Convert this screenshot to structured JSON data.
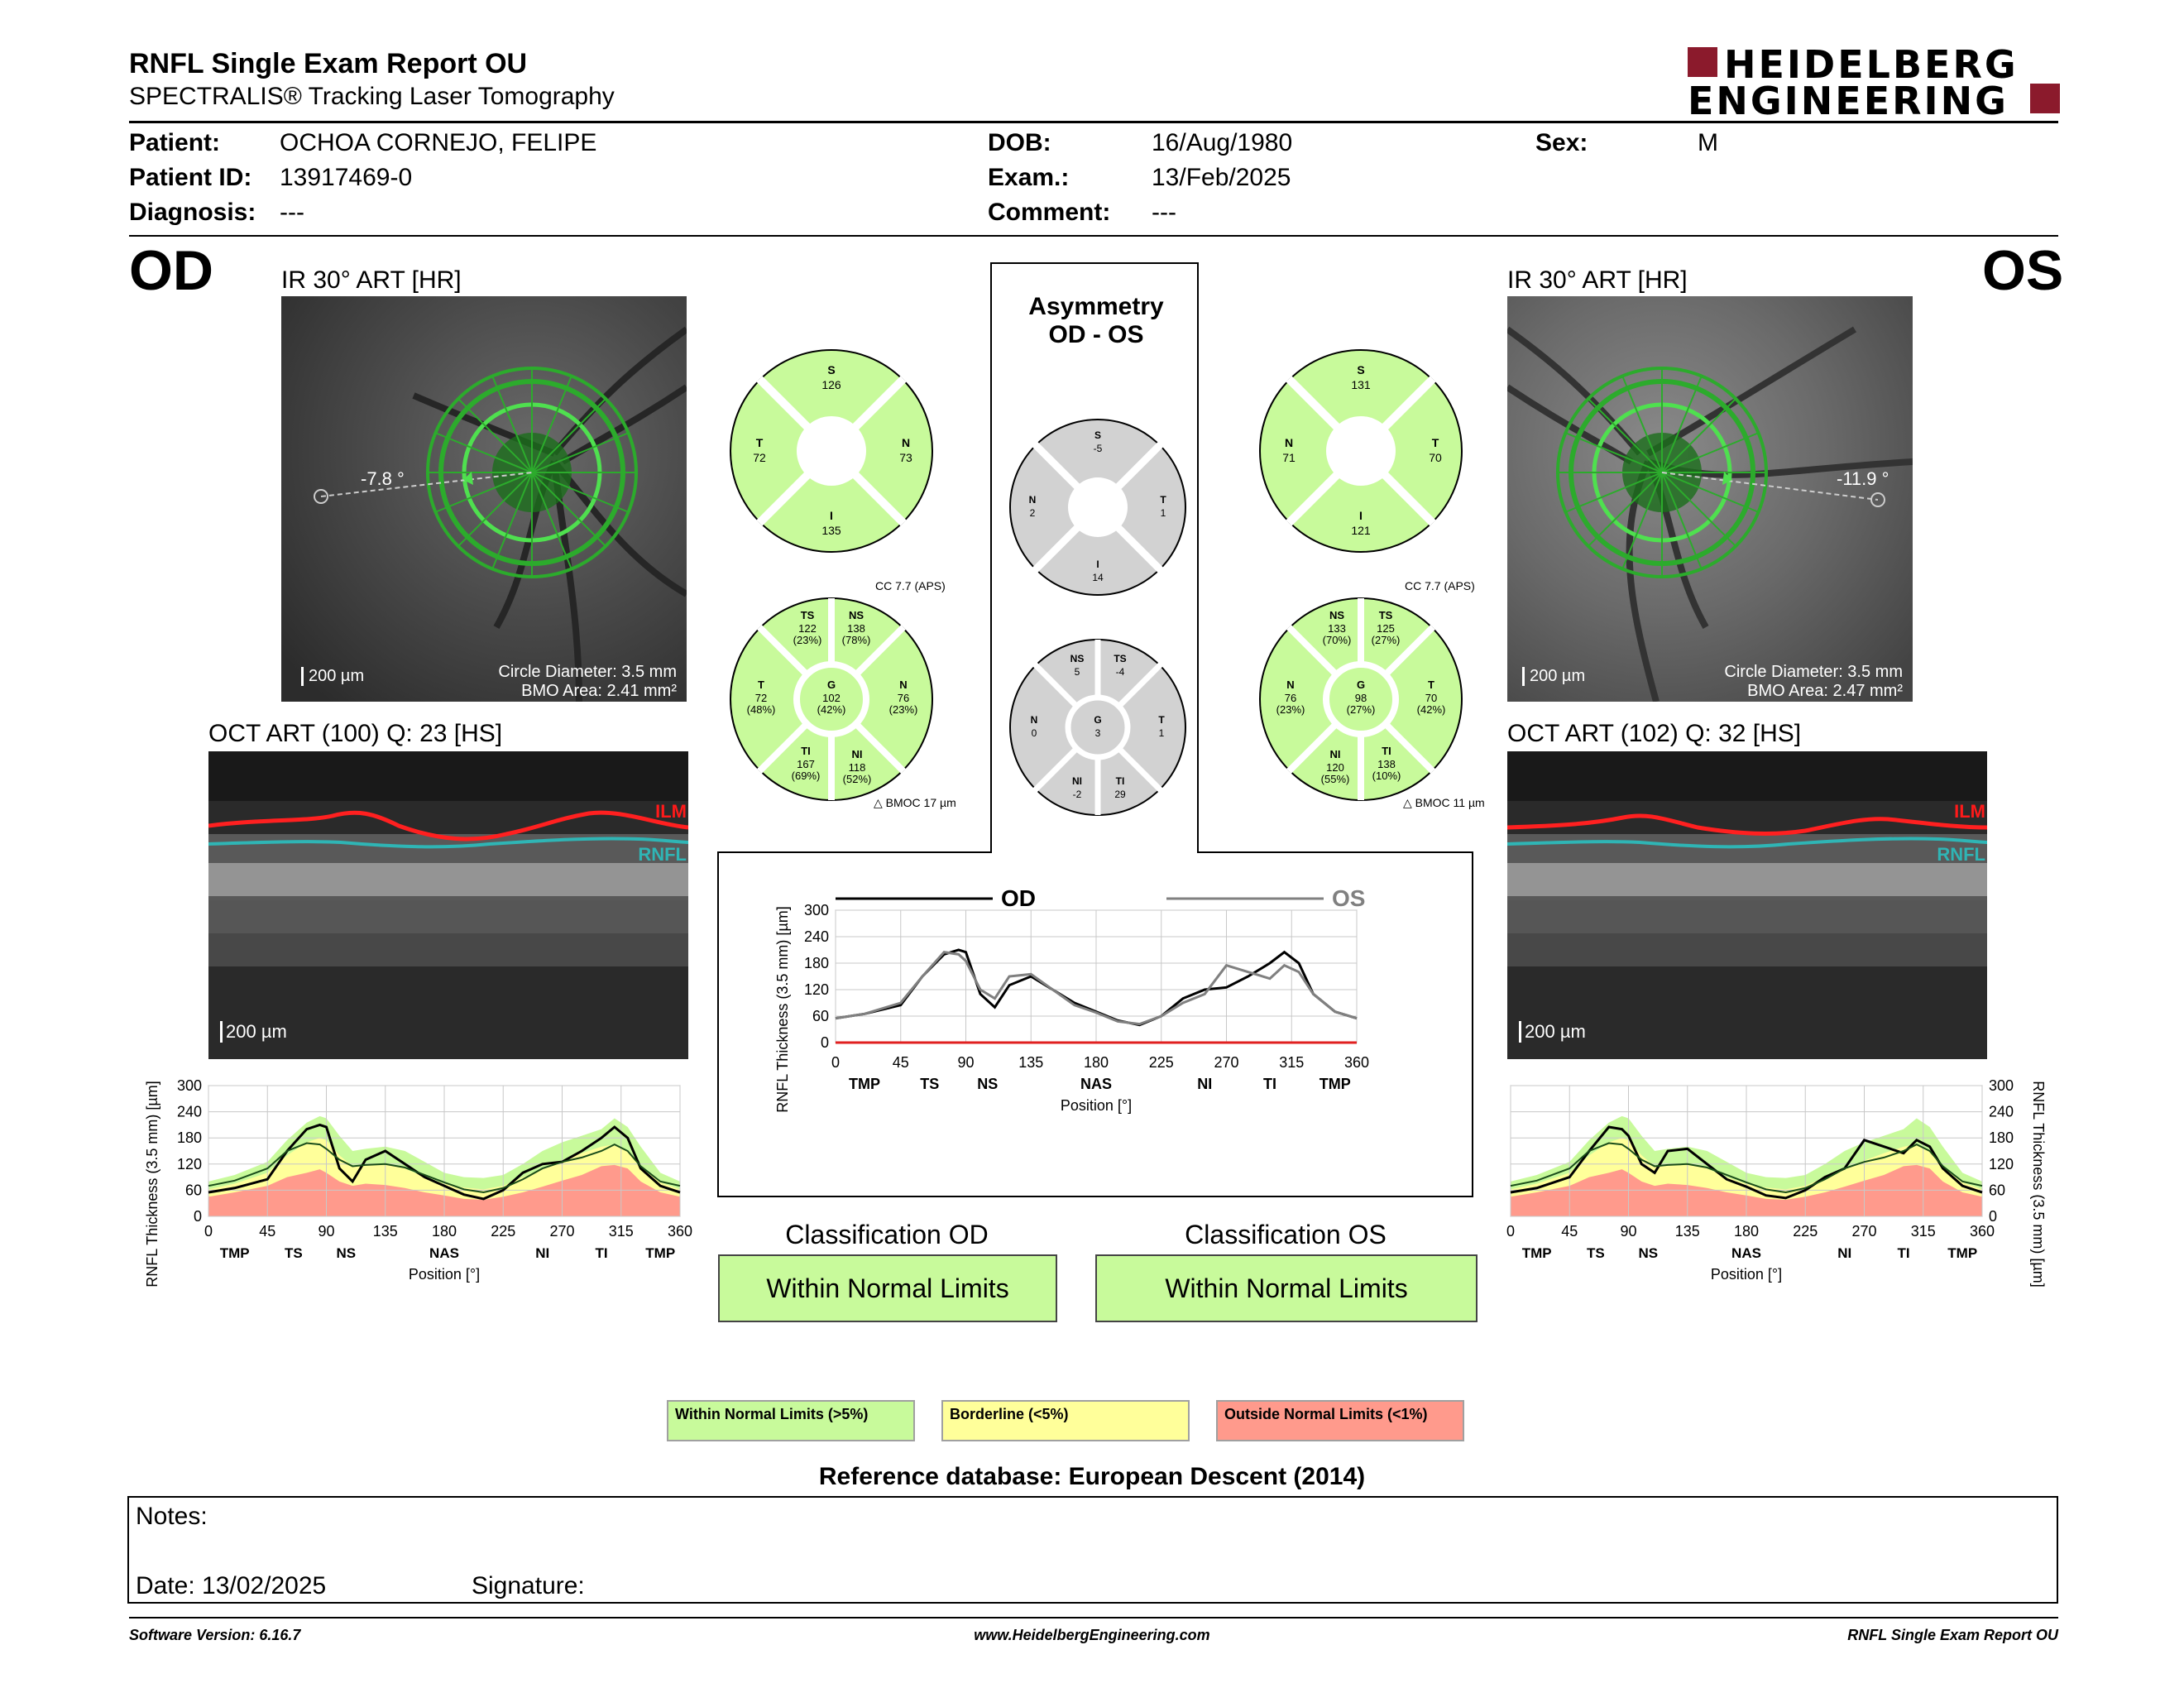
{
  "header": {
    "title": "RNFL Single Exam Report OU",
    "subtitle": "SPECTRALIS® Tracking Laser Tomography",
    "logo_line1": "HEIDELBERG",
    "logo_line2": "ENGINEERING"
  },
  "patient": {
    "patient_label": "Patient:",
    "patient_value": "OCHOA CORNEJO, FELIPE",
    "id_label": "Patient ID:",
    "id_value": "13917469-0",
    "diagnosis_label": "Diagnosis:",
    "diagnosis_value": "---",
    "dob_label": "DOB:",
    "dob_value": "16/Aug/1980",
    "exam_label": "Exam.:",
    "exam_value": "13/Feb/2025",
    "comment_label": "Comment:",
    "comment_value": "---",
    "sex_label": "Sex:",
    "sex_value": "M"
  },
  "od": {
    "eye": "OD",
    "ir_title": "IR 30° ART [HR]",
    "angle": "-7.8 °",
    "scale": "200 µm",
    "circle_diameter": "Circle Diameter: 3.5 mm",
    "bmo_area": "BMO Area: 2.41 mm²",
    "oct_title": "OCT ART (100) Q: 23 [HS]",
    "oct_scale": "200 µm",
    "ilm": "ILM",
    "rnfl": "RNFL",
    "classification_title": "Classification OD",
    "classification": "Within Normal Limits"
  },
  "os": {
    "eye": "OS",
    "ir_title": "IR 30° ART [HR]",
    "angle": "-11.9 °",
    "scale": "200 µm",
    "circle_diameter": "Circle Diameter: 3.5 mm",
    "bmo_area": "BMO Area: 2.47 mm²",
    "oct_title": "OCT ART (102) Q: 32 [HS]",
    "oct_scale": "200 µm",
    "ilm": "ILM",
    "rnfl": "RNFL",
    "classification_title": "Classification OS",
    "classification": "Within Normal Limits"
  },
  "asymmetry": {
    "title_line1": "Asymmetry",
    "title_line2": "OD - OS"
  },
  "sectors": {
    "od_quad": {
      "S": "126",
      "N": "73",
      "I": "135",
      "T": "72"
    },
    "os_quad": {
      "S": "131",
      "N": "71",
      "I": "121",
      "T": "70"
    },
    "asym_quad": {
      "S": "-5",
      "N": "2",
      "I": "14",
      "T": "1"
    },
    "od_six": {
      "cc": "CC 7.7 (APS)",
      "bmoc": "BMOC 17 µm",
      "TS": [
        "122",
        "(23%)"
      ],
      "NS": [
        "138",
        "(78%)"
      ],
      "N": [
        "76",
        "(23%)"
      ],
      "NI": [
        "118",
        "(52%)"
      ],
      "TI": [
        "167",
        "(69%)"
      ],
      "T": [
        "72",
        "(48%)"
      ],
      "G": [
        "102",
        "(42%)"
      ]
    },
    "os_six": {
      "cc": "CC 7.7 (APS)",
      "bmoc": "BMOC 11 µm",
      "NS": [
        "133",
        "(70%)"
      ],
      "TS": [
        "125",
        "(27%)"
      ],
      "T": [
        "70",
        "(42%)"
      ],
      "TI": [
        "138",
        "(10%)"
      ],
      "NI": [
        "120",
        "(55%)"
      ],
      "N": [
        "76",
        "(23%)"
      ],
      "G": [
        "98",
        "(27%)"
      ]
    },
    "asym_six": {
      "NS": "5",
      "TS": "-4",
      "N": "0",
      "T": "1",
      "NI": "-2",
      "TI": "29",
      "G": "3"
    }
  },
  "chart_data": [
    {
      "id": "od-profile",
      "type": "area",
      "ylabel": "RNFL Thickness (3.5 mm) [µm]",
      "xlabel": "Position [°]",
      "xlim": [
        0,
        360
      ],
      "ylim": [
        0,
        300
      ],
      "xticks": [
        0,
        45,
        90,
        135,
        180,
        225,
        270,
        315,
        360
      ],
      "yticks": [
        0,
        60,
        120,
        180,
        240,
        300
      ],
      "sectors": [
        {
          "label": "TMP",
          "x": 20
        },
        {
          "label": "TS",
          "x": 65
        },
        {
          "label": "NS",
          "x": 105
        },
        {
          "label": "NAS",
          "x": 180
        },
        {
          "label": "NI",
          "x": 255
        },
        {
          "label": "TI",
          "x": 300
        },
        {
          "label": "TMP",
          "x": 345
        }
      ],
      "x": [
        0,
        20,
        45,
        60,
        75,
        85,
        90,
        100,
        110,
        120,
        135,
        150,
        165,
        180,
        195,
        210,
        225,
        240,
        255,
        270,
        285,
        300,
        310,
        320,
        330,
        345,
        360
      ],
      "upper": [
        80,
        95,
        125,
        175,
        215,
        230,
        225,
        185,
        150,
        155,
        160,
        150,
        125,
        100,
        90,
        88,
        95,
        120,
        150,
        170,
        185,
        200,
        225,
        205,
        160,
        100,
        80
      ],
      "p5": [
        62,
        75,
        100,
        140,
        170,
        180,
        175,
        140,
        115,
        118,
        120,
        110,
        90,
        75,
        66,
        62,
        70,
        90,
        110,
        128,
        145,
        160,
        165,
        150,
        115,
        78,
        62
      ],
      "p1": [
        45,
        55,
        70,
        90,
        100,
        108,
        100,
        80,
        70,
        75,
        72,
        65,
        55,
        48,
        40,
        38,
        45,
        55,
        68,
        82,
        95,
        115,
        118,
        110,
        80,
        55,
        45
      ],
      "series": [
        {
          "name": "OD",
          "values": [
            55,
            65,
            85,
            150,
            200,
            210,
            205,
            110,
            80,
            130,
            150,
            120,
            90,
            70,
            50,
            40,
            60,
            100,
            120,
            125,
            150,
            180,
            205,
            180,
            110,
            70,
            55
          ]
        },
        {
          "name": "mean",
          "values": [
            70,
            82,
            110,
            150,
            168,
            165,
            155,
            130,
            115,
            118,
            120,
            112,
            95,
            78,
            62,
            55,
            65,
            85,
            110,
            125,
            135,
            150,
            165,
            150,
            115,
            80,
            70
          ]
        }
      ]
    },
    {
      "id": "os-profile",
      "type": "area",
      "ylabel": "RNFL Thickness (3.5 mm) [µm]",
      "xlabel": "Position [°]",
      "xlim": [
        0,
        360
      ],
      "ylim": [
        0,
        300
      ],
      "xticks": [
        0,
        45,
        90,
        135,
        180,
        225,
        270,
        315,
        360
      ],
      "yticks": [
        0,
        60,
        120,
        180,
        240,
        300
      ],
      "sectors": [
        {
          "label": "TMP",
          "x": 20
        },
        {
          "label": "TS",
          "x": 65
        },
        {
          "label": "NS",
          "x": 105
        },
        {
          "label": "NAS",
          "x": 180
        },
        {
          "label": "NI",
          "x": 255
        },
        {
          "label": "TI",
          "x": 300
        },
        {
          "label": "TMP",
          "x": 345
        }
      ],
      "x": [
        0,
        20,
        45,
        60,
        75,
        85,
        90,
        100,
        110,
        120,
        135,
        150,
        165,
        180,
        195,
        210,
        225,
        240,
        255,
        270,
        285,
        300,
        310,
        320,
        330,
        345,
        360
      ],
      "upper": [
        80,
        95,
        125,
        175,
        215,
        230,
        225,
        185,
        150,
        155,
        160,
        150,
        125,
        100,
        90,
        88,
        95,
        120,
        150,
        170,
        185,
        200,
        225,
        205,
        160,
        100,
        80
      ],
      "p5": [
        62,
        75,
        100,
        140,
        170,
        180,
        175,
        140,
        115,
        118,
        120,
        110,
        90,
        75,
        66,
        62,
        70,
        90,
        110,
        128,
        145,
        160,
        165,
        150,
        115,
        78,
        62
      ],
      "p1": [
        45,
        55,
        70,
        90,
        100,
        108,
        100,
        80,
        70,
        75,
        72,
        65,
        55,
        48,
        40,
        38,
        45,
        55,
        68,
        82,
        95,
        115,
        118,
        110,
        80,
        55,
        45
      ],
      "series": [
        {
          "name": "OS",
          "values": [
            55,
            65,
            90,
            150,
            205,
            200,
            185,
            120,
            100,
            150,
            155,
            120,
            85,
            68,
            48,
            42,
            60,
            90,
            110,
            175,
            160,
            145,
            175,
            160,
            110,
            70,
            55
          ]
        },
        {
          "name": "mean",
          "values": [
            70,
            82,
            110,
            150,
            168,
            165,
            155,
            130,
            115,
            118,
            120,
            112,
            95,
            78,
            62,
            55,
            65,
            85,
            110,
            125,
            135,
            150,
            165,
            150,
            115,
            80,
            70
          ]
        }
      ]
    },
    {
      "id": "ou-comparison",
      "type": "line",
      "ylabel": "RNFL Thickness (3.5 mm) [µm]",
      "xlabel": "Position [°]",
      "xlim": [
        0,
        360
      ],
      "ylim": [
        0,
        300
      ],
      "xticks": [
        0,
        45,
        90,
        135,
        180,
        225,
        270,
        315,
        360
      ],
      "yticks": [
        0,
        60,
        120,
        180,
        240,
        300
      ],
      "sectors": [
        {
          "label": "TMP",
          "x": 20
        },
        {
          "label": "TS",
          "x": 65
        },
        {
          "label": "NS",
          "x": 105
        },
        {
          "label": "NAS",
          "x": 180
        },
        {
          "label": "NI",
          "x": 255
        },
        {
          "label": "TI",
          "x": 300
        },
        {
          "label": "TMP",
          "x": 345
        }
      ],
      "x": [
        0,
        20,
        45,
        60,
        75,
        85,
        90,
        100,
        110,
        120,
        135,
        150,
        165,
        180,
        195,
        210,
        225,
        240,
        255,
        270,
        285,
        300,
        310,
        320,
        330,
        345,
        360
      ],
      "series": [
        {
          "name": "OD",
          "color": "#000000",
          "values": [
            55,
            65,
            85,
            150,
            200,
            210,
            205,
            110,
            80,
            130,
            150,
            120,
            90,
            70,
            50,
            40,
            60,
            100,
            120,
            125,
            150,
            180,
            205,
            180,
            110,
            70,
            55
          ]
        },
        {
          "name": "OS",
          "color": "#808080",
          "values": [
            55,
            65,
            90,
            150,
            205,
            200,
            185,
            120,
            100,
            150,
            155,
            120,
            85,
            68,
            48,
            42,
            60,
            90,
            110,
            175,
            160,
            145,
            175,
            160,
            110,
            70,
            55
          ]
        }
      ]
    }
  ],
  "legend": {
    "wnl": "Within Normal Limits (>5%)",
    "bl": "Borderline (<5%)",
    "onl": "Outside Normal Limits (<1%)"
  },
  "reference": "Reference database: European Descent (2014)",
  "notes": {
    "notes_label": "Notes:",
    "date": "Date: 13/02/2025",
    "signature": "Signature:"
  },
  "footer": {
    "version": "Software Version: 6.16.7",
    "website": "www.HeidelbergEngineering.com",
    "report": "RNFL Single Exam Report OU"
  },
  "colors": {
    "normal": "#c8fa9b",
    "borderline": "#ffff9a",
    "outside": "#ff9a8c",
    "grey": "#d2d2d2",
    "brand": "#8b1a2c"
  }
}
